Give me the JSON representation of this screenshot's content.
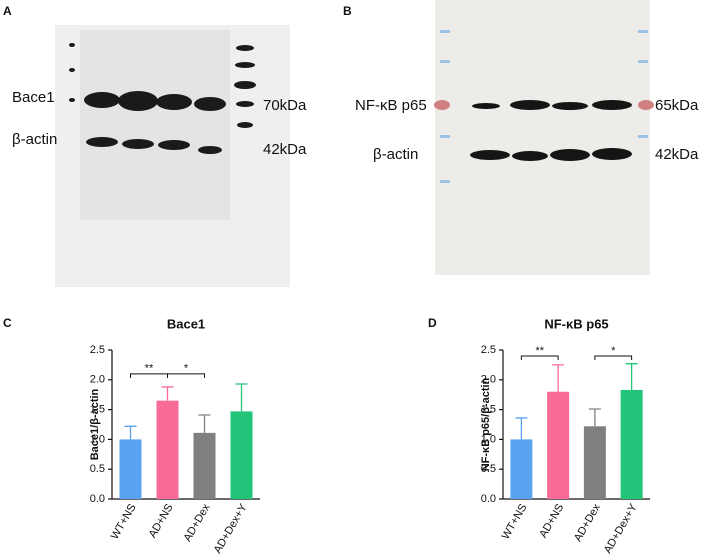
{
  "panels": {
    "a": "A",
    "b": "B",
    "c": "C",
    "d": "D"
  },
  "blots": {
    "a": {
      "labels": [
        "Bace1",
        "β-actin"
      ],
      "sizes": [
        "70kDa",
        "42kDa"
      ]
    },
    "b": {
      "labels": [
        "NF-κB p65",
        "β-actin"
      ],
      "sizes": [
        "65kDa",
        "42kDa"
      ]
    }
  },
  "chart_data": [
    {
      "type": "bar",
      "title": "Bace1",
      "y_label": "Bace1/β-actin",
      "categories": [
        "WT+NS",
        "AD+NS",
        "AD+Dex",
        "AD+Dex+Y"
      ],
      "values": [
        1.0,
        1.65,
        1.11,
        1.47
      ],
      "errors": [
        0.22,
        0.23,
        0.3,
        0.46
      ],
      "colors": [
        "#5aa3f0",
        "#f76b96",
        "#808080",
        "#22c47a"
      ],
      "ylim": [
        0,
        2.5
      ],
      "yticks": [
        {
          "value": 0,
          "label": "0.0"
        },
        0.5,
        {
          "value": 1,
          "label": "1.0"
        },
        1.5,
        {
          "value": 2,
          "label": "2.0"
        },
        2.5
      ],
      "annotations": [
        {
          "text": "**",
          "between": [
            "WT+NS",
            "AD+NS"
          ],
          "y": 2.1
        },
        {
          "text": "*",
          "between": [
            "AD+NS",
            "AD+Dex"
          ],
          "y": 2.1
        }
      ]
    },
    {
      "type": "bar",
      "title": "NF-κB p65",
      "y_label": "NF-κB p65/β-actin",
      "categories": [
        "WT+NS",
        "AD+NS",
        "AD+Dex",
        "AD+Dex+Y"
      ],
      "values": [
        1.0,
        1.8,
        1.22,
        1.83
      ],
      "errors": [
        0.36,
        0.45,
        0.29,
        0.44
      ],
      "colors": [
        "#5aa3f0",
        "#f76b96",
        "#808080",
        "#22c47a"
      ],
      "ylim": [
        0,
        2.5
      ],
      "yticks": [
        {
          "value": 0,
          "label": "0.0"
        },
        0.5,
        {
          "value": 1,
          "label": "1.0"
        },
        1.5,
        {
          "value": 2,
          "label": "2.0"
        },
        2.5
      ],
      "annotations": [
        {
          "text": "**",
          "between": [
            "WT+NS",
            "AD+NS"
          ],
          "y": 2.4
        },
        {
          "text": "*",
          "between": [
            "AD+Dex",
            "AD+Dex+Y"
          ],
          "y": 2.4
        }
      ]
    }
  ]
}
